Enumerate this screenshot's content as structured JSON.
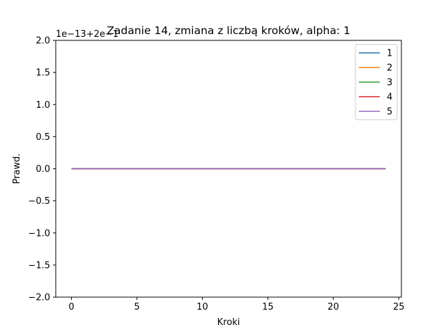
{
  "chart_data": {
    "type": "line",
    "title": "Zadanie 14, zmiana z liczbą kroków, alpha: 1",
    "xlabel": "Kroki",
    "ylabel": "Prawd.",
    "y_offset_label": "1e−13+2e−1",
    "xlim": [
      -1.2,
      25.2
    ],
    "ylim": [
      -2.0,
      2.0
    ],
    "xticks": [
      0,
      5,
      10,
      15,
      20,
      25
    ],
    "yticks": [
      -2.0,
      -1.5,
      -1.0,
      -0.5,
      0.0,
      0.5,
      1.0,
      1.5,
      2.0
    ],
    "x": [
      0,
      1,
      2,
      3,
      4,
      5,
      6,
      7,
      8,
      9,
      10,
      11,
      12,
      13,
      14,
      15,
      16,
      17,
      18,
      19,
      20,
      21,
      22,
      23,
      24
    ],
    "series": [
      {
        "name": "1",
        "color": "#1f77b4",
        "values": [
          0,
          0,
          0,
          0,
          0,
          0,
          0,
          0,
          0,
          0,
          0,
          0,
          0,
          0,
          0,
          0,
          0,
          0,
          0,
          0,
          0,
          0,
          0,
          0,
          0
        ]
      },
      {
        "name": "2",
        "color": "#ff7f0e",
        "values": [
          0,
          0,
          0,
          0,
          0,
          0,
          0,
          0,
          0,
          0,
          0,
          0,
          0,
          0,
          0,
          0,
          0,
          0,
          0,
          0,
          0,
          0,
          0,
          0,
          0
        ]
      },
      {
        "name": "3",
        "color": "#2ca02c",
        "values": [
          0,
          0,
          0,
          0,
          0,
          0,
          0,
          0,
          0,
          0,
          0,
          0,
          0,
          0,
          0,
          0,
          0,
          0,
          0,
          0,
          0,
          0,
          0,
          0,
          0
        ]
      },
      {
        "name": "4",
        "color": "#d62728",
        "values": [
          0,
          0,
          0,
          0,
          0,
          0,
          0,
          0,
          0,
          0,
          0,
          0,
          0,
          0,
          0,
          0,
          0,
          0,
          0,
          0,
          0,
          0,
          0,
          0,
          0
        ]
      },
      {
        "name": "5",
        "color": "#9467bd",
        "values": [
          0,
          0,
          0,
          0,
          0,
          0,
          0,
          0,
          0,
          0,
          0,
          0,
          0,
          0,
          0,
          0,
          0,
          0,
          0,
          0,
          0,
          0,
          0,
          0,
          0
        ]
      }
    ],
    "grid": false,
    "legend_position": "top-right"
  }
}
